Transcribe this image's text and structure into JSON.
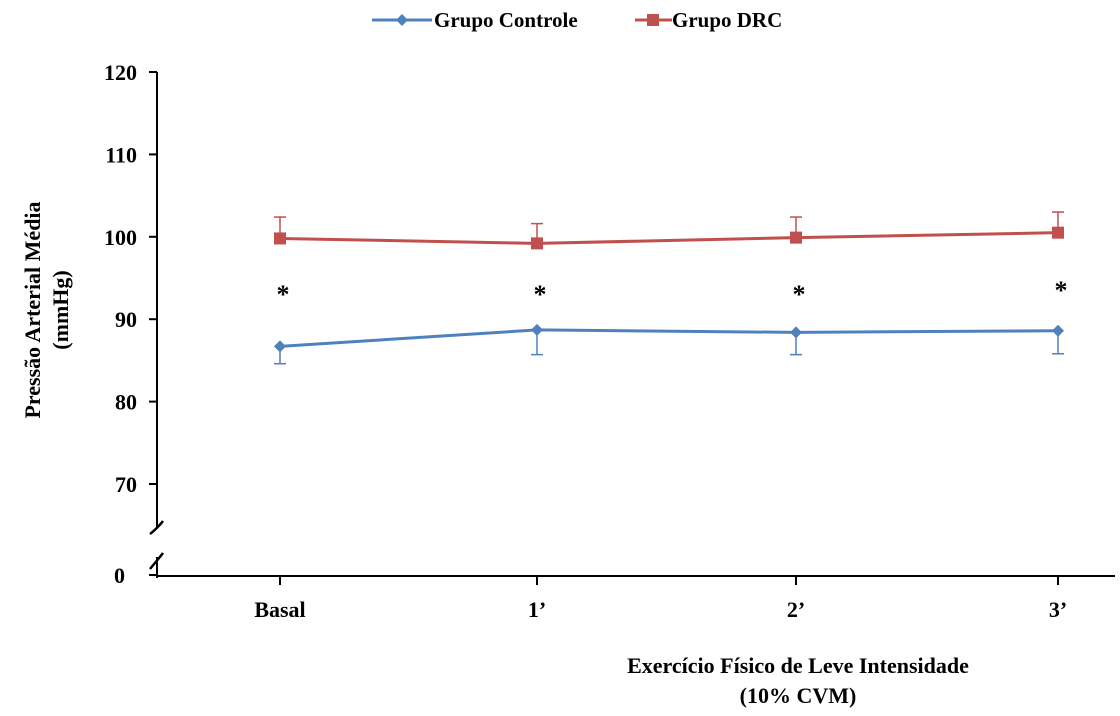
{
  "chart_data": {
    "type": "line",
    "ylabel_line1": "Pressão Arterial Média",
    "ylabel_line2": "(mmHg)",
    "xlabel_line1": "Exercício Físico de Leve Intensidade",
    "xlabel_line2": "(10% CVM)",
    "categories": [
      "Basal",
      "1’",
      "2’",
      "3’"
    ],
    "yticks": [
      70,
      80,
      90,
      100,
      110,
      120
    ],
    "ybreak_label": "0",
    "ylim": [
      70,
      120
    ],
    "axis_break": true,
    "legend_position": "top-center",
    "series": [
      {
        "name": "Grupo Controle",
        "color": "#4f81bd",
        "marker": "diamond",
        "values": [
          86.7,
          88.7,
          88.4,
          88.6
        ],
        "errors": [
          2.1,
          3.0,
          2.7,
          2.8
        ],
        "error_direction": "down"
      },
      {
        "name": "Grupo DRC",
        "color": "#c0504d",
        "marker": "square",
        "values": [
          99.8,
          99.2,
          99.9,
          100.5
        ],
        "errors": [
          2.6,
          2.4,
          2.5,
          2.5
        ],
        "error_direction": "up"
      }
    ],
    "annotations": [
      {
        "text": "*",
        "category": "Basal",
        "y": 93.4
      },
      {
        "text": "*",
        "category": "1’",
        "y": 93.4
      },
      {
        "text": "*",
        "category": "2’",
        "y": 93.4
      },
      {
        "text": "*",
        "category": "3’",
        "y": 93.9
      }
    ]
  }
}
